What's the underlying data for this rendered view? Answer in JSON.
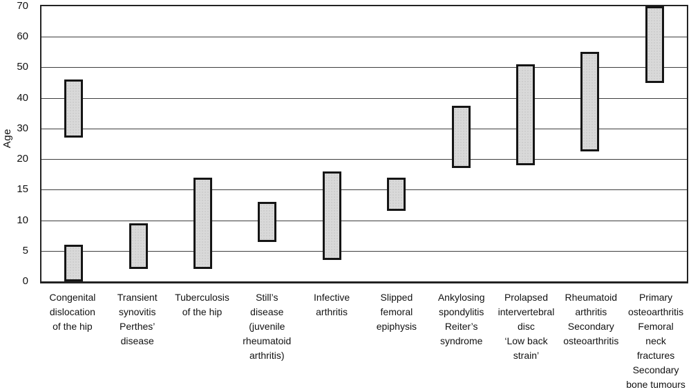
{
  "chart_data": {
    "type": "bar",
    "variant": "floating-range-columns",
    "title": "",
    "ylabel": "Age",
    "yticks": [
      0,
      5,
      10,
      15,
      20,
      30,
      40,
      50,
      60,
      70
    ],
    "ylim": [
      0,
      70
    ],
    "axis_note": "Vertical axis is non-linear: consecutive ticks are evenly spaced (steps of 5 up to age 20, then steps of 10 from 20 to 70).",
    "grid": true,
    "legend": "none",
    "categories": [
      {
        "label": "Congenital dislocation of the hip",
        "label_lines": [
          "Congenital",
          "dislocation",
          "of the hip"
        ],
        "age_ranges": [
          [
            27,
            46
          ],
          [
            0,
            6
          ]
        ]
      },
      {
        "label": "Transient synovitis Perthes' disease",
        "label_lines": [
          "Transient",
          "synovitis",
          "Perthes’",
          "disease"
        ],
        "age_ranges": [
          [
            2,
            9.5
          ]
        ]
      },
      {
        "label": "Tuberculosis of the hip",
        "label_lines": [
          "Tuberculosis",
          "of the hip"
        ],
        "age_ranges": [
          [
            2,
            17
          ]
        ]
      },
      {
        "label": "Still's disease (juvenile rheumatoid arthritis)",
        "label_lines": [
          "Still’s",
          "disease",
          "(juvenile",
          "rheumatoid",
          "arthritis)"
        ],
        "age_ranges": [
          [
            6.5,
            13
          ]
        ]
      },
      {
        "label": "Infective arthritis",
        "label_lines": [
          "Infective",
          "arthritis"
        ],
        "age_ranges": [
          [
            3.5,
            18
          ]
        ]
      },
      {
        "label": "Slipped femoral epiphysis",
        "label_lines": [
          "Slipped",
          "femoral",
          "epiphysis"
        ],
        "age_ranges": [
          [
            11.5,
            17
          ]
        ]
      },
      {
        "label": "Ankylosing spondylitis Reiter's syndrome",
        "label_lines": [
          "Ankylosing",
          "spondylitis",
          "Reiter’s",
          "syndrome"
        ],
        "age_ranges": [
          [
            18.5,
            37.5
          ]
        ]
      },
      {
        "label": "Prolapsed intervertebral disc 'Low back strain'",
        "label_lines": [
          "Prolapsed",
          "intervertebral",
          "disc",
          "‘Low back",
          "strain’"
        ],
        "age_ranges": [
          [
            19,
            51
          ]
        ]
      },
      {
        "label": "Rheumatoid arthritis Secondary osteoarthritis",
        "label_lines": [
          "Rheumatoid",
          "arthritis",
          "Secondary",
          "osteoarthritis"
        ],
        "age_ranges": [
          [
            22.5,
            55
          ]
        ]
      },
      {
        "label": "Primary osteoarthritis Femoral neck fractures Secondary bone tumours",
        "label_lines": [
          "Primary",
          "osteoarthritis",
          "Femoral",
          "neck",
          "fractures",
          "Secondary",
          "bone tumours"
        ],
        "age_ranges": [
          [
            45,
            70
          ]
        ]
      }
    ],
    "colors": {
      "background": "#ffffff",
      "bar_fill": "#d9d9d9",
      "bar_stipple": "#aeaeae",
      "bar_border": "#151515",
      "grid_line": "#3d3d3d",
      "axis_border": "#222222",
      "text": "#111111"
    }
  }
}
